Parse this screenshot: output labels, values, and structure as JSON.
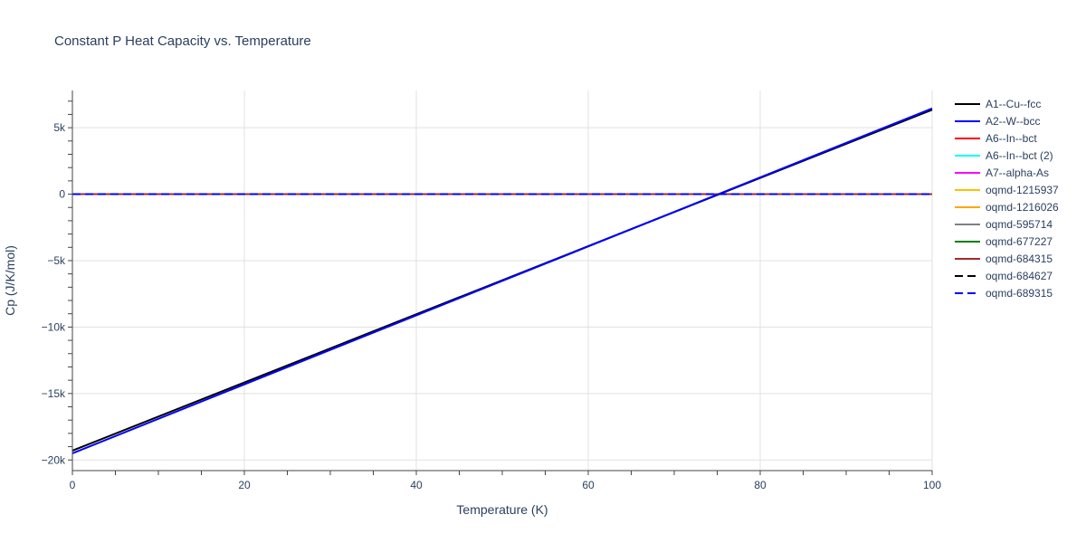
{
  "chart_data": {
    "type": "line",
    "title": "Constant P Heat Capacity vs. Temperature",
    "xlabel": "Temperature (K)",
    "ylabel": "Cp (J/K/mol)",
    "xlim": [
      0,
      100
    ],
    "ylim": [
      -20800,
      7800
    ],
    "x_ticks": [
      0,
      20,
      40,
      60,
      80,
      100
    ],
    "x_tick_labels": [
      "0",
      "20",
      "40",
      "60",
      "80",
      "100"
    ],
    "y_ticks": [
      -20000,
      -15000,
      -10000,
      -5000,
      0,
      5000
    ],
    "y_tick_labels": [
      "−20k",
      "−15k",
      "−10k",
      "−5k",
      "0",
      "5k"
    ],
    "grid": true,
    "legend_position": "right",
    "series": [
      {
        "name": "A1--Cu--fcc",
        "color": "#000000",
        "dash": "solid",
        "x": [
          0,
          100
        ],
        "y": [
          -19300,
          6350
        ]
      },
      {
        "name": "A2--W--bcc",
        "color": "#0000ff",
        "dash": "solid",
        "x": [
          0,
          100
        ],
        "y": [
          -19500,
          6450
        ]
      },
      {
        "name": "A6--In--bct",
        "color": "#ff0000",
        "dash": "solid",
        "x": [
          0,
          100
        ],
        "y": [
          0,
          0
        ]
      },
      {
        "name": "A6--In--bct (2)",
        "color": "#00ffff",
        "dash": "solid",
        "x": [
          0,
          100
        ],
        "y": [
          0,
          0
        ]
      },
      {
        "name": "A7--alpha-As",
        "color": "#ff00ff",
        "dash": "solid",
        "x": [
          0,
          100
        ],
        "y": [
          0,
          0
        ]
      },
      {
        "name": "oqmd-1215937",
        "color": "#ffc000",
        "dash": "solid",
        "x": [
          0,
          100
        ],
        "y": [
          0,
          0
        ]
      },
      {
        "name": "oqmd-1216026",
        "color": "#ffa500",
        "dash": "solid",
        "x": [
          0,
          100
        ],
        "y": [
          0,
          0
        ]
      },
      {
        "name": "oqmd-595714",
        "color": "#808080",
        "dash": "solid",
        "x": [
          0,
          100
        ],
        "y": [
          0,
          0
        ]
      },
      {
        "name": "oqmd-677227",
        "color": "#008000",
        "dash": "solid",
        "x": [
          0,
          100
        ],
        "y": [
          0,
          0
        ]
      },
      {
        "name": "oqmd-684315",
        "color": "#a52a2a",
        "dash": "solid",
        "x": [
          0,
          100
        ],
        "y": [
          0,
          0
        ]
      },
      {
        "name": "oqmd-684627",
        "color": "#000000",
        "dash": "dash",
        "x": [
          0,
          100
        ],
        "y": [
          0,
          0
        ]
      },
      {
        "name": "oqmd-689315",
        "color": "#0000ff",
        "dash": "dash",
        "x": [
          0,
          100
        ],
        "y": [
          0,
          0
        ]
      }
    ]
  }
}
